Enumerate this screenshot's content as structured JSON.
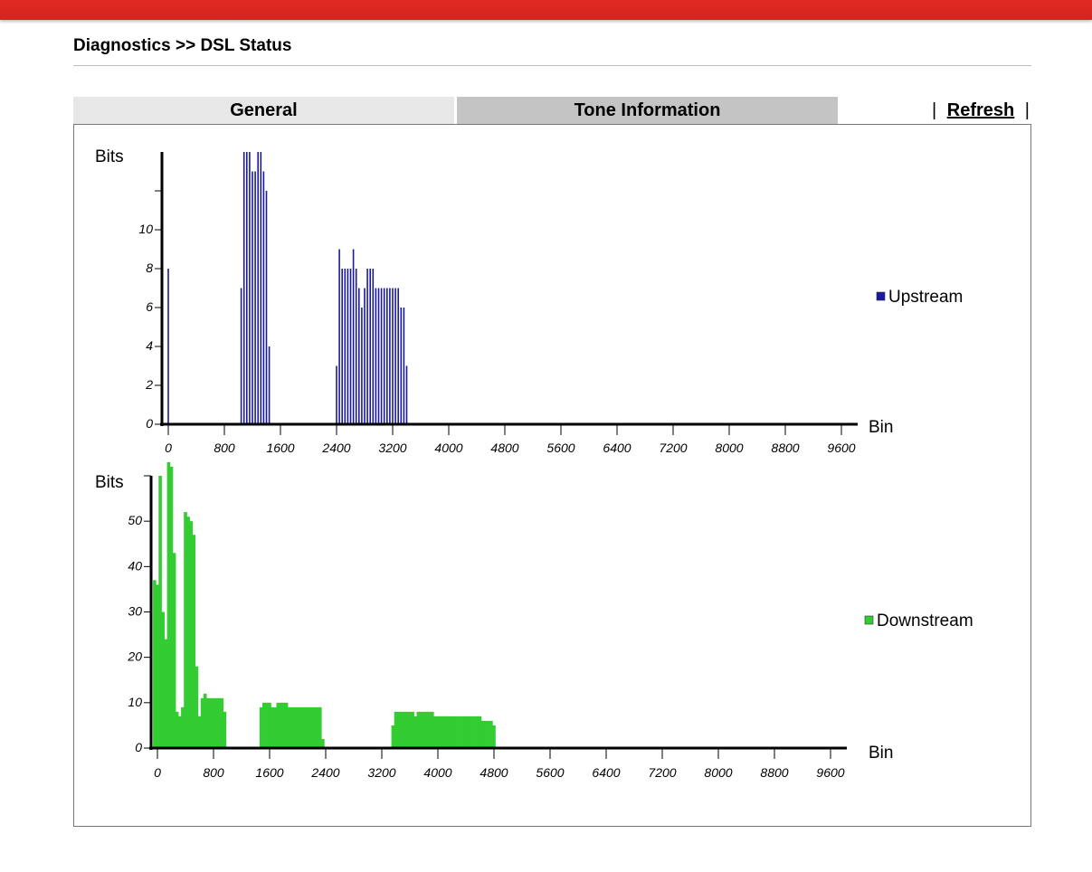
{
  "page": {
    "title": "Diagnostics >> DSL Status",
    "tabs": [
      {
        "label": "General",
        "active": false
      },
      {
        "label": "Tone Information",
        "active": true
      }
    ],
    "refresh_label": "Refresh",
    "separator": "|"
  },
  "colors": {
    "topbar": "#d62320",
    "upstream": "#1a1aa0",
    "downstream": "#33cc33"
  },
  "chart_data": [
    {
      "type": "bar",
      "title": "",
      "ylabel": "Bits",
      "xlabel": "Bin",
      "legend": "Upstream",
      "legend_position": "right",
      "color": "#1a1aa0",
      "ylim": [
        0,
        14
      ],
      "y_tick_values": [
        0,
        2,
        4,
        6,
        8,
        10,
        12
      ],
      "y_tick_labels": [
        "0",
        "2",
        "4",
        "6",
        "8",
        "10",
        ""
      ],
      "xlim": [
        -100,
        10200
      ],
      "x_ticks": [
        0,
        800,
        1600,
        2400,
        3200,
        4000,
        4800,
        5600,
        6400,
        7200,
        8000,
        8800,
        9600
      ],
      "x_tick_labels": [
        "0",
        "800",
        "1600",
        "2400",
        "3200",
        "4000",
        "4800",
        "5600",
        "6400",
        "7200",
        "8000",
        "8800",
        "9600"
      ],
      "points": [
        [
          0,
          8
        ],
        [
          1040,
          7
        ],
        [
          1080,
          14
        ],
        [
          1120,
          14
        ],
        [
          1160,
          14
        ],
        [
          1200,
          13
        ],
        [
          1240,
          13
        ],
        [
          1280,
          14
        ],
        [
          1320,
          14
        ],
        [
          1360,
          13
        ],
        [
          1400,
          12
        ],
        [
          1440,
          4
        ],
        [
          2400,
          3
        ],
        [
          2440,
          9
        ],
        [
          2480,
          8
        ],
        [
          2520,
          8
        ],
        [
          2560,
          8
        ],
        [
          2600,
          8
        ],
        [
          2640,
          9
        ],
        [
          2680,
          8
        ],
        [
          2720,
          7
        ],
        [
          2760,
          6
        ],
        [
          2800,
          7
        ],
        [
          2840,
          8
        ],
        [
          2880,
          8
        ],
        [
          2920,
          8
        ],
        [
          2960,
          7
        ],
        [
          3000,
          7
        ],
        [
          3040,
          7
        ],
        [
          3080,
          7
        ],
        [
          3120,
          7
        ],
        [
          3160,
          7
        ],
        [
          3200,
          7
        ],
        [
          3240,
          7
        ],
        [
          3280,
          7
        ],
        [
          3320,
          6
        ],
        [
          3360,
          6
        ],
        [
          3400,
          3
        ]
      ]
    },
    {
      "type": "bar",
      "title": "",
      "ylabel": "Bits",
      "xlabel": "Bin",
      "legend": "Downstream",
      "legend_position": "right",
      "color": "#33cc33",
      "ylim": [
        0,
        60
      ],
      "y_tick_values": [
        0,
        10,
        20,
        30,
        40,
        50,
        60
      ],
      "y_tick_labels": [
        "0",
        "10",
        "20",
        "30",
        "40",
        "50",
        ""
      ],
      "xlim": [
        -100,
        10200
      ],
      "x_ticks": [
        0,
        800,
        1600,
        2400,
        3200,
        4000,
        4800,
        5600,
        6400,
        7200,
        8000,
        8800,
        9600
      ],
      "x_tick_labels": [
        "0",
        "800",
        "1600",
        "2400",
        "3200",
        "4000",
        "4800",
        "5600",
        "6400",
        "7200",
        "8000",
        "8800",
        "9600"
      ],
      "points": [
        [
          -40,
          37
        ],
        [
          0,
          36
        ],
        [
          40,
          60
        ],
        [
          80,
          30
        ],
        [
          120,
          24
        ],
        [
          160,
          63
        ],
        [
          200,
          62
        ],
        [
          240,
          43
        ],
        [
          280,
          8
        ],
        [
          320,
          7
        ],
        [
          360,
          9
        ],
        [
          400,
          52
        ],
        [
          440,
          51
        ],
        [
          480,
          50
        ],
        [
          520,
          47
        ],
        [
          560,
          18
        ],
        [
          600,
          7
        ],
        [
          640,
          11
        ],
        [
          680,
          12
        ],
        [
          720,
          11
        ],
        [
          760,
          11
        ],
        [
          800,
          11
        ],
        [
          840,
          11
        ],
        [
          880,
          11
        ],
        [
          920,
          11
        ],
        [
          960,
          8
        ],
        [
          1480,
          9
        ],
        [
          1520,
          10
        ],
        [
          1560,
          10
        ],
        [
          1600,
          10
        ],
        [
          1640,
          9
        ],
        [
          1680,
          9
        ],
        [
          1720,
          10
        ],
        [
          1760,
          10
        ],
        [
          1800,
          10
        ],
        [
          1840,
          10
        ],
        [
          1880,
          9
        ],
        [
          1920,
          9
        ],
        [
          1960,
          9
        ],
        [
          2000,
          9
        ],
        [
          2040,
          9
        ],
        [
          2080,
          9
        ],
        [
          2120,
          9
        ],
        [
          2160,
          9
        ],
        [
          2200,
          9
        ],
        [
          2240,
          9
        ],
        [
          2280,
          9
        ],
        [
          2320,
          9
        ],
        [
          2360,
          2
        ],
        [
          3360,
          5
        ],
        [
          3400,
          8
        ],
        [
          3440,
          8
        ],
        [
          3480,
          8
        ],
        [
          3520,
          8
        ],
        [
          3560,
          8
        ],
        [
          3600,
          8
        ],
        [
          3640,
          8
        ],
        [
          3680,
          7
        ],
        [
          3720,
          8
        ],
        [
          3760,
          8
        ],
        [
          3800,
          8
        ],
        [
          3840,
          8
        ],
        [
          3880,
          8
        ],
        [
          3920,
          8
        ],
        [
          3960,
          7
        ],
        [
          4000,
          7
        ],
        [
          4040,
          7
        ],
        [
          4080,
          7
        ],
        [
          4120,
          7
        ],
        [
          4160,
          7
        ],
        [
          4200,
          7
        ],
        [
          4240,
          7
        ],
        [
          4280,
          7
        ],
        [
          4320,
          7
        ],
        [
          4360,
          7
        ],
        [
          4400,
          7
        ],
        [
          4440,
          7
        ],
        [
          4480,
          7
        ],
        [
          4520,
          7
        ],
        [
          4560,
          7
        ],
        [
          4600,
          7
        ],
        [
          4640,
          6
        ],
        [
          4680,
          6
        ],
        [
          4720,
          6
        ],
        [
          4760,
          6
        ],
        [
          4800,
          5
        ]
      ]
    }
  ]
}
